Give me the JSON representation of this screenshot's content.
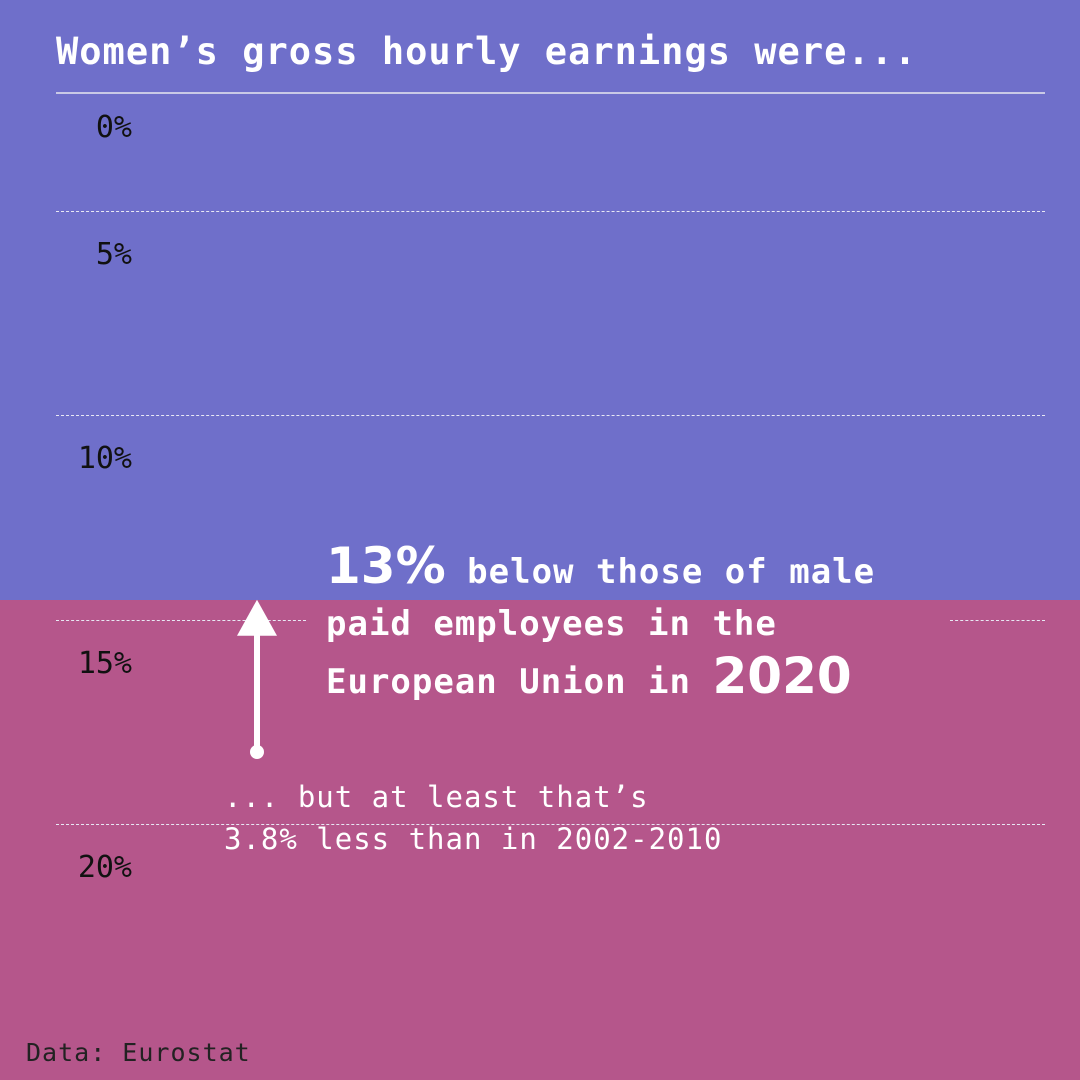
{
  "title": "Women’s gross hourly earnings were...",
  "source": "Data: Eurostat",
  "annotation": {
    "value_text": "13%",
    "line1_rest": "below those of male",
    "line2": "paid employees in the",
    "line3_start": "European Union in",
    "year_text": "2020",
    "sub_line1": "... but at least that’s",
    "sub_line2": "3.8% less than in 2002-2010"
  },
  "colors": {
    "above_gap": "#6f6fca",
    "below_gap": "#b5568b",
    "text_light": "#ffffff",
    "tick_text": "#111111"
  },
  "chart_data": {
    "type": "area",
    "title": "Women’s gross hourly earnings were...",
    "axis": "y",
    "y_inverted": true,
    "ylim": [
      0,
      20
    ],
    "y_ticks": [
      0,
      5,
      10,
      15,
      20
    ],
    "y_tick_labels": [
      "0%",
      "5%",
      "10%",
      "15%",
      "20%"
    ],
    "grid": true,
    "gender_pay_gap_2020": 13,
    "gap_reduction_vs_2002_2010": 3.8,
    "gender_pay_gap_2002_2010": 16.8,
    "year": 2020,
    "region": "European Union"
  }
}
